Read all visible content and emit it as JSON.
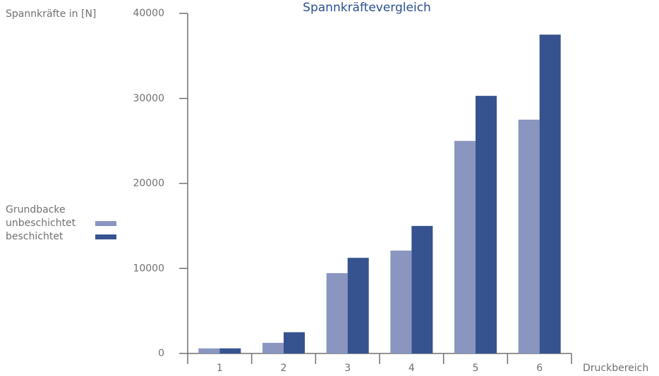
{
  "chart_data": {
    "type": "bar",
    "title": "Spannkräftevergleich",
    "y_label": "Spannkräfte in [N]",
    "x_label": "Druckbereich",
    "legend_title": "Grundbacke",
    "legend": "left",
    "categories": [
      "1",
      "2",
      "3",
      "4",
      "5",
      "6"
    ],
    "series": [
      {
        "name": "unbeschichtet",
        "color": "#8a95c0",
        "values": [
          600,
          1250,
          9450,
          12100,
          25000,
          27500
        ]
      },
      {
        "name": "beschichtet",
        "color": "#36538f",
        "values": [
          600,
          2500,
          11250,
          15000,
          30300,
          37500
        ]
      }
    ],
    "ylim": [
      0,
      40000
    ],
    "yticks": [
      0,
      10000,
      20000,
      30000,
      40000
    ]
  }
}
